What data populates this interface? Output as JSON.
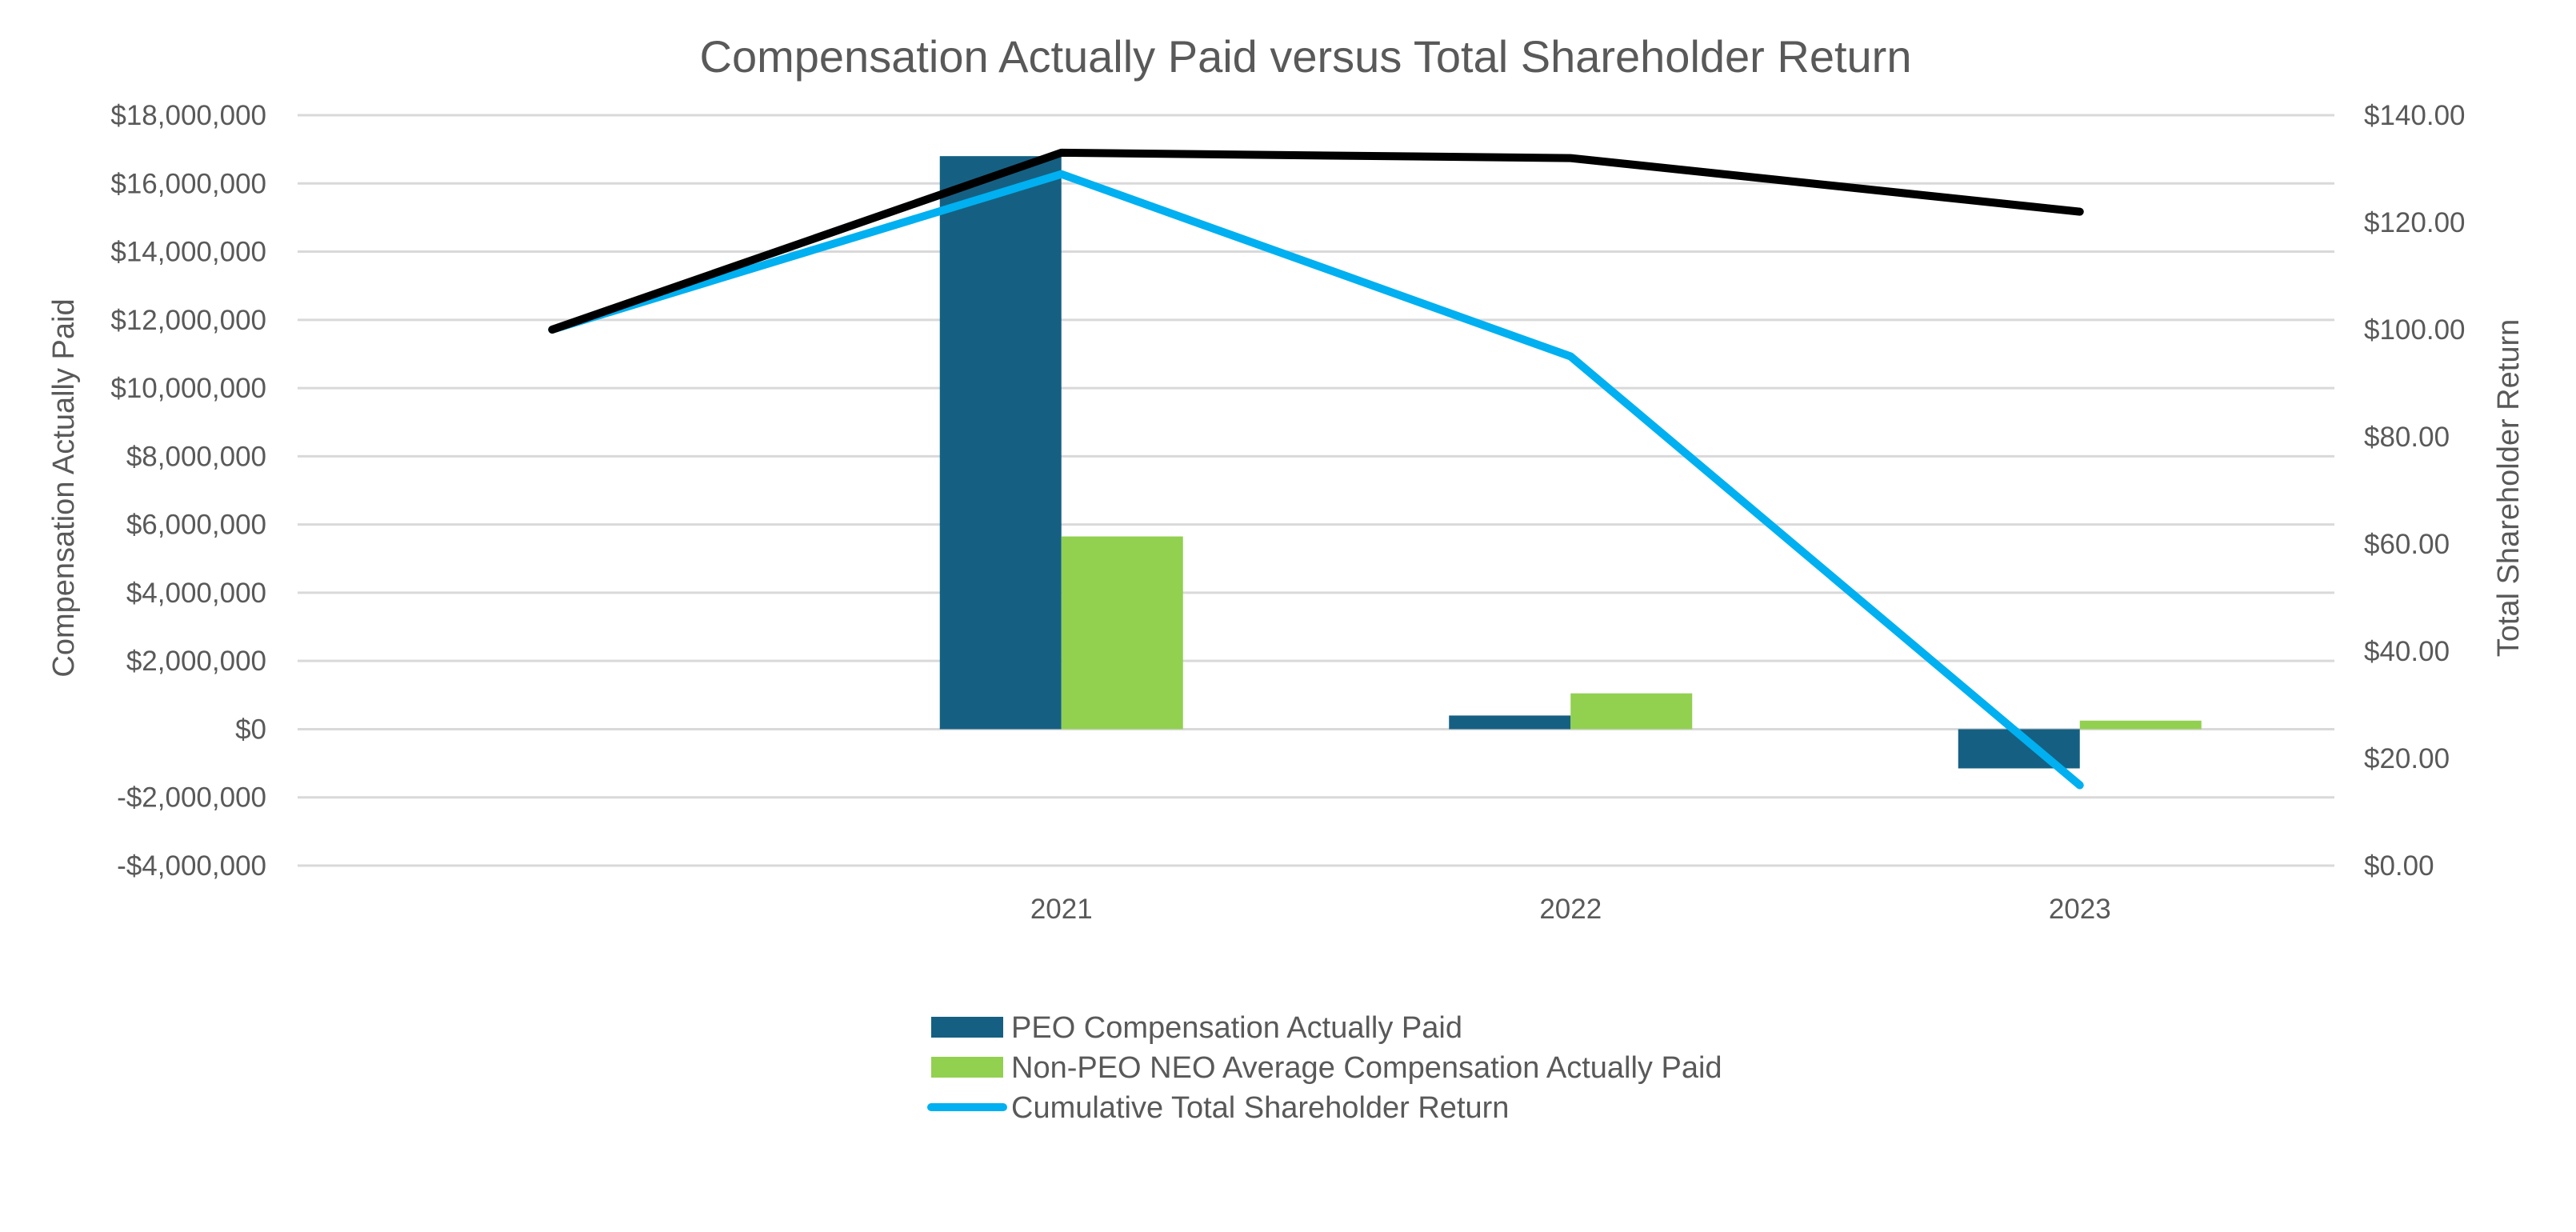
{
  "chart_data": {
    "type": "bar",
    "title": "Compensation Actually Paid versus Total Shareholder Return",
    "ylabel": "Compensation Actually Paid",
    "y2label": "Total Shareholder Return",
    "xlabel": "",
    "categories": [
      "",
      "2021",
      "2022",
      "2023"
    ],
    "ylim": [
      -4000000,
      18000000
    ],
    "y_ticks": [
      -4000000,
      -2000000,
      0,
      2000000,
      4000000,
      6000000,
      8000000,
      10000000,
      12000000,
      14000000,
      16000000,
      18000000
    ],
    "y_tick_labels": [
      "-$4,000,000",
      "-$2,000,000",
      "$0",
      "$2,000,000",
      "$4,000,000",
      "$6,000,000",
      "$8,000,000",
      "$10,000,000",
      "$12,000,000",
      "$14,000,000",
      "$16,000,000",
      "$18,000,000"
    ],
    "y2lim": [
      0,
      140
    ],
    "y2_ticks": [
      0,
      20,
      40,
      60,
      80,
      100,
      120,
      140
    ],
    "y2_tick_labels": [
      "$0.00",
      "$20.00",
      "$40.00",
      "$60.00",
      "$80.00",
      "$100.00",
      "$120.00",
      "$140.00"
    ],
    "grid": true,
    "legend_position": "bottom",
    "series": [
      {
        "name": "PEO Compensation Actually Paid",
        "type": "bar",
        "axis": "left",
        "color": "#156082",
        "values": [
          null,
          16800000,
          400000,
          -1150000
        ]
      },
      {
        "name": "Non-PEO NEO Average Compensation  Actually Paid",
        "type": "bar",
        "axis": "left",
        "color": "#92d050",
        "values": [
          null,
          5650000,
          1050000,
          250000
        ]
      },
      {
        "name": "Cumulative Total Shareholder Return",
        "type": "line",
        "axis": "right",
        "color": "#00b0f0",
        "values": [
          100,
          129,
          95,
          15
        ]
      },
      {
        "name": "",
        "type": "line",
        "axis": "right",
        "color": "#000000",
        "values": [
          100,
          133,
          132,
          122
        ]
      }
    ]
  }
}
